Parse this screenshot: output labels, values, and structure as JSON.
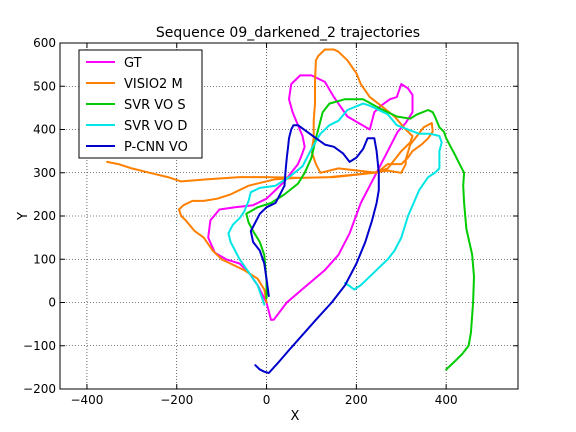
{
  "chart_data": {
    "type": "line",
    "title": "Sequence 09_darkened_2 trajectories",
    "xlabel": "X",
    "ylabel": "Y",
    "xlim": [
      -460,
      560
    ],
    "ylim": [
      -200,
      600
    ],
    "xticks": [
      -400,
      -200,
      0,
      200,
      400
    ],
    "yticks": [
      -200,
      -100,
      0,
      100,
      200,
      300,
      400,
      500,
      600
    ],
    "xtick_labels": [
      "−400",
      "−200",
      "0",
      "200",
      "400"
    ],
    "ytick_labels": [
      "−200",
      "−100",
      "0",
      "100",
      "200",
      "300",
      "400",
      "500",
      "600"
    ],
    "grid": true,
    "legend_position": "top-left",
    "series": [
      {
        "name": "GT",
        "color": "#ff00ff",
        "points": [
          [
            10,
            -40
          ],
          [
            16,
            -40
          ],
          [
            45,
            0
          ],
          [
            90,
            40
          ],
          [
            130,
            75
          ],
          [
            160,
            110
          ],
          [
            185,
            160
          ],
          [
            210,
            230
          ],
          [
            240,
            290
          ],
          [
            265,
            340
          ],
          [
            292,
            395
          ],
          [
            310,
            415
          ],
          [
            325,
            440
          ],
          [
            325,
            480
          ],
          [
            315,
            495
          ],
          [
            300,
            505
          ],
          [
            290,
            475
          ],
          [
            275,
            470
          ],
          [
            255,
            455
          ],
          [
            240,
            440
          ],
          [
            230,
            400
          ],
          [
            180,
            430
          ],
          [
            150,
            475
          ],
          [
            130,
            510
          ],
          [
            100,
            525
          ],
          [
            75,
            525
          ],
          [
            55,
            505
          ],
          [
            50,
            470
          ],
          [
            58,
            440
          ],
          [
            70,
            410
          ],
          [
            80,
            385
          ],
          [
            85,
            360
          ],
          [
            78,
            340
          ],
          [
            70,
            320
          ],
          [
            55,
            300
          ],
          [
            40,
            280
          ],
          [
            20,
            260
          ],
          [
            0,
            240
          ],
          [
            -30,
            225
          ],
          [
            -70,
            220
          ],
          [
            -105,
            215
          ],
          [
            -125,
            190
          ],
          [
            -130,
            150
          ],
          [
            -115,
            115
          ],
          [
            -90,
            100
          ],
          [
            -60,
            90
          ],
          [
            -40,
            70
          ],
          [
            -20,
            40
          ],
          [
            0,
            0
          ],
          [
            10,
            -40
          ]
        ]
      },
      {
        "name": "VISIO2 M",
        "color": "#ff8000",
        "points": [
          [
            -355,
            325
          ],
          [
            -330,
            320
          ],
          [
            -300,
            310
          ],
          [
            -260,
            300
          ],
          [
            -220,
            290
          ],
          [
            -190,
            280
          ],
          [
            -130,
            285
          ],
          [
            -60,
            290
          ],
          [
            0,
            290
          ],
          [
            80,
            288
          ],
          [
            140,
            290
          ],
          [
            210,
            297
          ],
          [
            270,
            305
          ],
          [
            300,
            300
          ],
          [
            310,
            320
          ],
          [
            310,
            330
          ],
          [
            320,
            365
          ],
          [
            335,
            385
          ],
          [
            350,
            405
          ],
          [
            368,
            415
          ],
          [
            370,
            395
          ],
          [
            360,
            380
          ],
          [
            345,
            365
          ],
          [
            325,
            350
          ],
          [
            315,
            335
          ],
          [
            300,
            320
          ],
          [
            270,
            320
          ],
          [
            245,
            300
          ],
          [
            160,
            310
          ],
          [
            120,
            300
          ],
          [
            110,
            320
          ],
          [
            100,
            350
          ],
          [
            105,
            380
          ],
          [
            105,
            420
          ],
          [
            108,
            460
          ],
          [
            108,
            510
          ],
          [
            110,
            560
          ],
          [
            115,
            570
          ],
          [
            130,
            585
          ],
          [
            150,
            585
          ],
          [
            160,
            580
          ],
          [
            180,
            560
          ],
          [
            200,
            530
          ],
          [
            210,
            505
          ],
          [
            230,
            475
          ],
          [
            255,
            455
          ],
          [
            285,
            430
          ],
          [
            310,
            400
          ],
          [
            325,
            385
          ],
          [
            320,
            370
          ],
          [
            300,
            350
          ],
          [
            270,
            310
          ],
          [
            240,
            300
          ],
          [
            150,
            290
          ],
          [
            70,
            288
          ],
          [
            20,
            285
          ],
          [
            -40,
            270
          ],
          [
            -80,
            250
          ],
          [
            -110,
            240
          ],
          [
            -140,
            235
          ],
          [
            -165,
            235
          ],
          [
            -185,
            225
          ],
          [
            -195,
            215
          ],
          [
            -190,
            200
          ],
          [
            -180,
            190
          ],
          [
            -160,
            165
          ],
          [
            -140,
            150
          ],
          [
            -120,
            120
          ],
          [
            -100,
            100
          ],
          [
            -80,
            90
          ],
          [
            -50,
            75
          ],
          [
            -20,
            55
          ],
          [
            -5,
            30
          ],
          [
            0,
            0
          ]
        ]
      },
      {
        "name": "SVR VO S",
        "color": "#00cc00",
        "points": [
          [
            400,
            -155
          ],
          [
            415,
            -140
          ],
          [
            435,
            -120
          ],
          [
            450,
            -100
          ],
          [
            455,
            -70
          ],
          [
            460,
            0
          ],
          [
            462,
            60
          ],
          [
            458,
            110
          ],
          [
            445,
            170
          ],
          [
            440,
            230
          ],
          [
            438,
            270
          ],
          [
            440,
            300
          ],
          [
            430,
            320
          ],
          [
            418,
            345
          ],
          [
            405,
            370
          ],
          [
            400,
            380
          ],
          [
            395,
            395
          ],
          [
            385,
            405
          ],
          [
            375,
            430
          ],
          [
            370,
            440
          ],
          [
            360,
            445
          ],
          [
            335,
            435
          ],
          [
            320,
            425
          ],
          [
            290,
            430
          ],
          [
            250,
            450
          ],
          [
            215,
            470
          ],
          [
            175,
            470
          ],
          [
            140,
            460
          ],
          [
            125,
            440
          ],
          [
            115,
            400
          ],
          [
            110,
            380
          ],
          [
            100,
            335
          ],
          [
            85,
            300
          ],
          [
            70,
            275
          ],
          [
            40,
            250
          ],
          [
            10,
            230
          ],
          [
            -20,
            220
          ],
          [
            -45,
            205
          ],
          [
            -40,
            185
          ],
          [
            -30,
            165
          ],
          [
            -15,
            140
          ],
          [
            -5,
            110
          ],
          [
            0,
            50
          ],
          [
            0,
            10
          ]
        ]
      },
      {
        "name": "SVR VO D",
        "color": "#00e5e5",
        "points": [
          [
            175,
            45
          ],
          [
            185,
            38
          ],
          [
            195,
            30
          ],
          [
            210,
            40
          ],
          [
            225,
            55
          ],
          [
            240,
            70
          ],
          [
            255,
            85
          ],
          [
            270,
            100
          ],
          [
            285,
            120
          ],
          [
            300,
            150
          ],
          [
            315,
            200
          ],
          [
            340,
            260
          ],
          [
            360,
            290
          ],
          [
            375,
            300
          ],
          [
            385,
            310
          ],
          [
            385,
            350
          ],
          [
            390,
            370
          ],
          [
            385,
            385
          ],
          [
            365,
            390
          ],
          [
            340,
            390
          ],
          [
            315,
            400
          ],
          [
            290,
            410
          ],
          [
            270,
            435
          ],
          [
            250,
            445
          ],
          [
            230,
            455
          ],
          [
            215,
            460
          ],
          [
            180,
            445
          ],
          [
            160,
            420
          ],
          [
            140,
            410
          ],
          [
            120,
            390
          ],
          [
            100,
            355
          ],
          [
            80,
            315
          ],
          [
            50,
            290
          ],
          [
            20,
            270
          ],
          [
            -15,
            265
          ],
          [
            -35,
            255
          ],
          [
            -40,
            235
          ],
          [
            -50,
            210
          ],
          [
            -60,
            195
          ],
          [
            -75,
            180
          ],
          [
            -85,
            160
          ],
          [
            -80,
            140
          ],
          [
            -70,
            120
          ],
          [
            -60,
            100
          ],
          [
            -40,
            70
          ],
          [
            -20,
            40
          ],
          [
            -10,
            10
          ],
          [
            -5,
            -5
          ]
        ]
      },
      {
        "name": "P-CNN VO",
        "color": "#0000cc",
        "points": [
          [
            -25,
            -145
          ],
          [
            -15,
            -155
          ],
          [
            -5,
            -160
          ],
          [
            5,
            -163
          ],
          [
            25,
            -140
          ],
          [
            50,
            -110
          ],
          [
            80,
            -75
          ],
          [
            110,
            -40
          ],
          [
            145,
            0
          ],
          [
            175,
            40
          ],
          [
            200,
            90
          ],
          [
            220,
            140
          ],
          [
            235,
            190
          ],
          [
            245,
            230
          ],
          [
            250,
            260
          ],
          [
            250,
            300
          ],
          [
            245,
            350
          ],
          [
            240,
            380
          ],
          [
            225,
            380
          ],
          [
            215,
            355
          ],
          [
            200,
            335
          ],
          [
            185,
            325
          ],
          [
            170,
            345
          ],
          [
            150,
            360
          ],
          [
            130,
            365
          ],
          [
            110,
            380
          ],
          [
            90,
            395
          ],
          [
            70,
            410
          ],
          [
            60,
            410
          ],
          [
            55,
            400
          ],
          [
            50,
            380
          ],
          [
            48,
            360
          ],
          [
            45,
            335
          ],
          [
            42,
            300
          ],
          [
            40,
            270
          ],
          [
            30,
            250
          ],
          [
            20,
            230
          ],
          [
            0,
            220
          ],
          [
            -15,
            205
          ],
          [
            -25,
            185
          ],
          [
            -35,
            165
          ],
          [
            -30,
            140
          ],
          [
            -15,
            120
          ],
          [
            -5,
            90
          ],
          [
            0,
            55
          ],
          [
            5,
            15
          ]
        ]
      }
    ]
  }
}
